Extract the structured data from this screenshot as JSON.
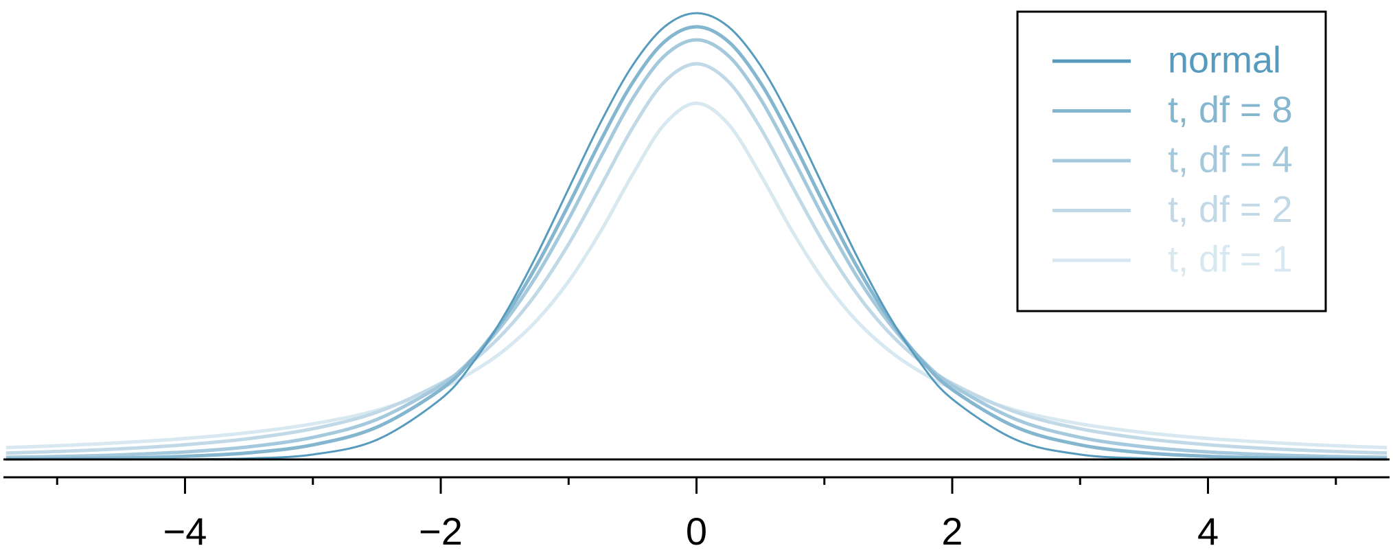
{
  "chart_data": {
    "type": "line",
    "x": [
      -5.4,
      -5,
      -4.5,
      -4,
      -3.5,
      -3,
      -2.5,
      -2,
      -1.75,
      -1.5,
      -1.25,
      -1,
      -0.75,
      -0.5,
      -0.25,
      0,
      0.25,
      0.5,
      0.75,
      1,
      1.25,
      1.5,
      1.75,
      2,
      2.5,
      3,
      3.5,
      4,
      4.5,
      5,
      5.4
    ],
    "series": [
      {
        "name": "normal",
        "color": "#569bbd",
        "values": [
          0,
          0,
          0,
          0.0001,
          0.0009,
          0.0044,
          0.0175,
          0.054,
          0.0863,
          0.1295,
          0.1826,
          0.242,
          0.3011,
          0.3521,
          0.3867,
          0.3989,
          0.3867,
          0.3521,
          0.3011,
          0.242,
          0.1826,
          0.1295,
          0.0863,
          0.054,
          0.0175,
          0.0044,
          0.0009,
          0.0001,
          0,
          0,
          0
        ]
      },
      {
        "name": "t, df = 8",
        "color": "#84b6cf",
        "values": [
          0.0004,
          0.0007,
          0.0013,
          0.0028,
          0.0059,
          0.013,
          0.0288,
          0.0624,
          0.0899,
          0.1268,
          0.1733,
          0.2276,
          0.2848,
          0.3367,
          0.3734,
          0.3867,
          0.3734,
          0.3367,
          0.2848,
          0.2276,
          0.1733,
          0.1268,
          0.0899,
          0.0624,
          0.0288,
          0.013,
          0.0059,
          0.0028,
          0.0013,
          0.0007,
          0.0004
        ]
      },
      {
        "name": "t, df = 4",
        "color": "#a5c9dc",
        "values": [
          0.0019,
          0.0026,
          0.0041,
          0.0067,
          0.0113,
          0.0197,
          0.0357,
          0.0663,
          0.0905,
          0.1229,
          0.1644,
          0.2147,
          0.2699,
          0.3223,
          0.3607,
          0.375,
          0.3607,
          0.3223,
          0.2699,
          0.2147,
          0.1644,
          0.1229,
          0.0905,
          0.0663,
          0.0357,
          0.0197,
          0.0113,
          0.0067,
          0.0041,
          0.0026,
          0.0019
        ]
      },
      {
        "name": "t, df = 2",
        "color": "#c1d9e7",
        "values": [
          0.0057,
          0.0071,
          0.0095,
          0.0131,
          0.0186,
          0.0274,
          0.0422,
          0.068,
          0.0878,
          0.1141,
          0.1487,
          0.1925,
          0.2438,
          0.2963,
          0.3376,
          0.3536,
          0.3376,
          0.2963,
          0.2438,
          0.1925,
          0.1487,
          0.1141,
          0.0878,
          0.068,
          0.0422,
          0.0274,
          0.0186,
          0.0131,
          0.0095,
          0.0071,
          0.0057
        ]
      },
      {
        "name": "t, df = 1",
        "color": "#d7e8f1",
        "values": [
          0.0106,
          0.0122,
          0.015,
          0.0187,
          0.024,
          0.0318,
          0.0439,
          0.0637,
          0.0784,
          0.0979,
          0.1242,
          0.1592,
          0.2037,
          0.2546,
          0.2996,
          0.3183,
          0.2996,
          0.2546,
          0.2037,
          0.1592,
          0.1242,
          0.0979,
          0.0784,
          0.0637,
          0.0439,
          0.0318,
          0.024,
          0.0187,
          0.015,
          0.0122,
          0.0106
        ]
      }
    ],
    "xlim": [
      -5.42,
      5.42
    ],
    "ylim": [
      0,
      0.41
    ],
    "xticks": [
      {
        "value": -4,
        "label": "−4"
      },
      {
        "value": -2,
        "label": "−2"
      },
      0,
      2,
      4
    ],
    "xminor_ticks": [
      -5,
      -3,
      -1,
      1,
      3,
      5
    ],
    "legend": "top-right"
  }
}
